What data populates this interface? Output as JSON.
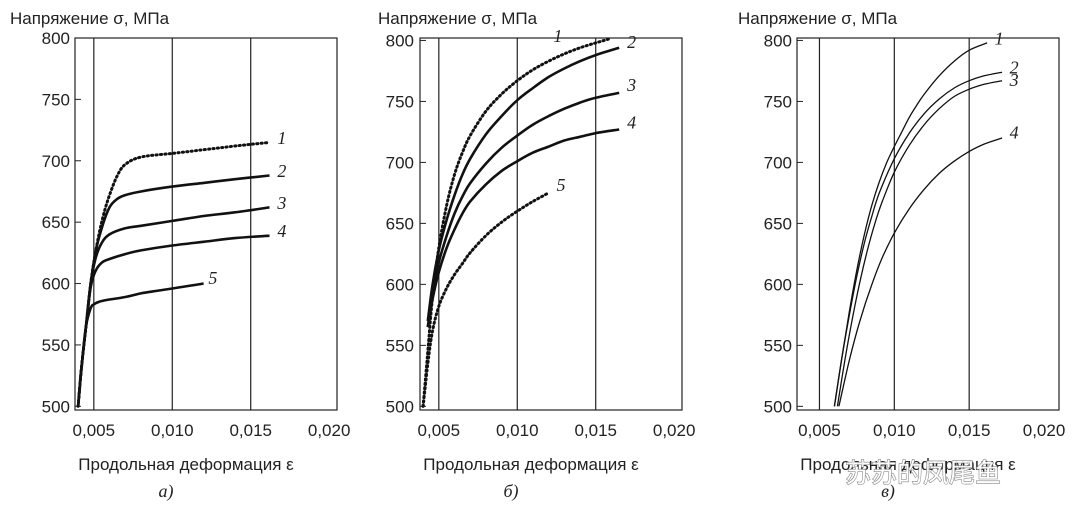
{
  "watermark": "苏苏的凤尾鱼",
  "chart_data": [
    {
      "type": "line",
      "panel_label": "а)",
      "title": "",
      "ylabel": "Напряжение σ, МПа",
      "xlabel": "Продольная деформация ε",
      "xlim": [
        0.0038,
        0.0205
      ],
      "ylim": [
        497,
        800
      ],
      "xticks": [
        0.005,
        0.01,
        0.015,
        0.02
      ],
      "xtick_labels": [
        "0,005",
        "0,010",
        "0,015",
        "0,020"
      ],
      "yticks": [
        500,
        550,
        600,
        650,
        700,
        750,
        800
      ],
      "ytick_labels": [
        "500",
        "550",
        "600",
        "650",
        "700",
        "750",
        "800"
      ],
      "vertical_gridlines_at": [
        0.005,
        0.01,
        0.015
      ],
      "grid": "vertical",
      "series": [
        {
          "name": "1",
          "style": "dotted",
          "x": [
            0.004,
            0.0042,
            0.0045,
            0.0048,
            0.0052,
            0.0056,
            0.006,
            0.0065,
            0.007,
            0.008,
            0.01,
            0.012,
            0.014,
            0.0162
          ],
          "y": [
            500,
            530,
            565,
            600,
            632,
            655,
            672,
            688,
            697,
            703,
            706,
            709,
            712,
            715
          ]
        },
        {
          "name": "2",
          "style": "solid",
          "x": [
            0.004,
            0.0042,
            0.0045,
            0.0048,
            0.0051,
            0.0055,
            0.006,
            0.0065,
            0.007,
            0.008,
            0.01,
            0.012,
            0.014,
            0.0162
          ],
          "y": [
            500,
            530,
            565,
            600,
            625,
            645,
            662,
            669,
            672,
            675,
            679,
            682,
            685,
            688
          ]
        },
        {
          "name": "3",
          "style": "solid",
          "x": [
            0.004,
            0.0042,
            0.0045,
            0.0048,
            0.0051,
            0.0055,
            0.006,
            0.007,
            0.008,
            0.01,
            0.012,
            0.014,
            0.0162
          ],
          "y": [
            500,
            530,
            565,
            600,
            620,
            633,
            640,
            645,
            647,
            651,
            655,
            658,
            662
          ]
        },
        {
          "name": "4",
          "style": "solid",
          "x": [
            0.004,
            0.0042,
            0.0045,
            0.0048,
            0.0051,
            0.0055,
            0.006,
            0.007,
            0.008,
            0.01,
            0.012,
            0.014,
            0.0162
          ],
          "y": [
            500,
            530,
            565,
            597,
            610,
            617,
            620,
            624,
            627,
            631,
            634,
            637,
            639
          ]
        },
        {
          "name": "5",
          "style": "solid",
          "x": [
            0.004,
            0.0042,
            0.0045,
            0.0048,
            0.005,
            0.0053,
            0.0056,
            0.006,
            0.007,
            0.008,
            0.009,
            0.01,
            0.011,
            0.012
          ],
          "y": [
            500,
            530,
            565,
            580,
            583,
            585,
            586,
            587,
            589,
            592,
            594,
            596,
            598,
            600
          ]
        }
      ],
      "label_positions_data": [
        [
          0.0167,
          717
        ],
        [
          0.0167,
          690
        ],
        [
          0.0167,
          664
        ],
        [
          0.0167,
          641
        ],
        [
          0.0123,
          603
        ]
      ]
    },
    {
      "type": "line",
      "panel_label": "б)",
      "title": "",
      "ylabel": "Напряжение σ, МПа",
      "xlabel": "Продольная деформация ε",
      "xlim": [
        0.0038,
        0.0205
      ],
      "ylim": [
        497,
        802
      ],
      "xticks": [
        0.005,
        0.01,
        0.015,
        0.02
      ],
      "xtick_labels": [
        "0,005",
        "0,010",
        "0,015",
        "0,020"
      ],
      "yticks": [
        500,
        550,
        600,
        650,
        700,
        750,
        800
      ],
      "ytick_labels": [
        "500",
        "550",
        "600",
        "650",
        "700",
        "750",
        "800"
      ],
      "vertical_gridlines_at": [
        0.005,
        0.01,
        0.015
      ],
      "grid": "vertical",
      "series": [
        {
          "name": "1",
          "style": "dotted",
          "x": [
            0.004,
            0.0043,
            0.0046,
            0.005,
            0.0055,
            0.006,
            0.0065,
            0.007,
            0.008,
            0.009,
            0.01,
            0.011,
            0.012,
            0.013,
            0.014,
            0.015,
            0.0158
          ],
          "y": [
            500,
            545,
            590,
            630,
            665,
            690,
            708,
            722,
            742,
            756,
            767,
            776,
            783,
            789,
            794,
            798,
            801
          ]
        },
        {
          "name": "2",
          "style": "solid",
          "x": [
            0.0043,
            0.0046,
            0.005,
            0.0055,
            0.006,
            0.0065,
            0.007,
            0.008,
            0.009,
            0.01,
            0.011,
            0.012,
            0.013,
            0.014,
            0.015,
            0.0165
          ],
          "y": [
            570,
            600,
            628,
            653,
            673,
            690,
            703,
            723,
            738,
            751,
            761,
            770,
            777,
            783,
            788,
            794
          ]
        },
        {
          "name": "3",
          "style": "solid",
          "x": [
            0.0043,
            0.0046,
            0.005,
            0.0055,
            0.006,
            0.0065,
            0.007,
            0.008,
            0.009,
            0.01,
            0.011,
            0.012,
            0.013,
            0.014,
            0.015,
            0.0165
          ],
          "y": [
            565,
            592,
            618,
            640,
            658,
            672,
            683,
            699,
            712,
            722,
            731,
            738,
            744,
            749,
            753,
            757
          ]
        },
        {
          "name": "4",
          "style": "solid",
          "x": [
            0.0043,
            0.0046,
            0.005,
            0.0055,
            0.006,
            0.0065,
            0.007,
            0.008,
            0.009,
            0.01,
            0.011,
            0.012,
            0.013,
            0.014,
            0.015,
            0.0165
          ],
          "y": [
            565,
            588,
            610,
            630,
            645,
            658,
            668,
            682,
            693,
            701,
            708,
            713,
            718,
            721,
            724,
            727
          ]
        },
        {
          "name": "5",
          "style": "dotted",
          "x": [
            0.004,
            0.0043,
            0.0046,
            0.005,
            0.0055,
            0.006,
            0.0065,
            0.007,
            0.008,
            0.009,
            0.01,
            0.011,
            0.012
          ],
          "y": [
            500,
            535,
            562,
            582,
            597,
            608,
            617,
            626,
            640,
            651,
            660,
            668,
            675
          ]
        }
      ],
      "label_positions_data": [
        [
          0.0123,
          802
        ],
        [
          0.017,
          797
        ],
        [
          0.017,
          762
        ],
        [
          0.017,
          731
        ],
        [
          0.0125,
          680
        ]
      ]
    },
    {
      "type": "line",
      "panel_label": "в)",
      "title": "",
      "ylabel": "Напряжение σ, МПа",
      "xlabel": "Продольная деформация ε",
      "xlim": [
        0.0035,
        0.021
      ],
      "ylim": [
        497,
        802
      ],
      "xticks": [
        0.005,
        0.01,
        0.015,
        0.02
      ],
      "xtick_labels": [
        "0,005",
        "0,010",
        "0,015",
        "0,020"
      ],
      "yticks": [
        500,
        550,
        600,
        650,
        700,
        750,
        800
      ],
      "ytick_labels": [
        "500",
        "550",
        "600",
        "650",
        "700",
        "750",
        "800"
      ],
      "vertical_gridlines_at": [
        0.005,
        0.01,
        0.015
      ],
      "grid": "vertical",
      "series": [
        {
          "name": "1",
          "style": "solid",
          "x": [
            0.006,
            0.0065,
            0.007,
            0.0075,
            0.008,
            0.0085,
            0.009,
            0.0095,
            0.01,
            0.0105,
            0.011,
            0.0115,
            0.012,
            0.013,
            0.014,
            0.015,
            0.0162
          ],
          "y": [
            500,
            540,
            578,
            612,
            641,
            665,
            684,
            700,
            713,
            725,
            737,
            747,
            756,
            771,
            783,
            792,
            798
          ]
        },
        {
          "name": "2",
          "style": "solid",
          "x": [
            0.006,
            0.0065,
            0.007,
            0.0075,
            0.008,
            0.0085,
            0.009,
            0.01,
            0.011,
            0.012,
            0.013,
            0.014,
            0.015,
            0.016,
            0.0172
          ],
          "y": [
            500,
            540,
            575,
            607,
            634,
            656,
            675,
            703,
            724,
            740,
            752,
            761,
            767,
            771,
            774
          ]
        },
        {
          "name": "3",
          "style": "solid",
          "x": [
            0.0062,
            0.0067,
            0.0072,
            0.0077,
            0.0082,
            0.0087,
            0.0092,
            0.01,
            0.011,
            0.012,
            0.013,
            0.014,
            0.015,
            0.016,
            0.0172
          ],
          "y": [
            500,
            538,
            572,
            602,
            628,
            650,
            668,
            692,
            714,
            731,
            744,
            754,
            760,
            764,
            767
          ]
        },
        {
          "name": "4",
          "style": "solid",
          "x": [
            0.0063,
            0.007,
            0.0077,
            0.0085,
            0.0092,
            0.01,
            0.011,
            0.012,
            0.013,
            0.014,
            0.015,
            0.016,
            0.0172
          ],
          "y": [
            500,
            538,
            570,
            600,
            622,
            642,
            662,
            678,
            691,
            701,
            709,
            715,
            720
          ]
        }
      ],
      "label_positions_data": [
        [
          0.0167,
          800
        ],
        [
          0.0177,
          776
        ],
        [
          0.0177,
          766
        ],
        [
          0.0177,
          723
        ]
      ]
    }
  ]
}
